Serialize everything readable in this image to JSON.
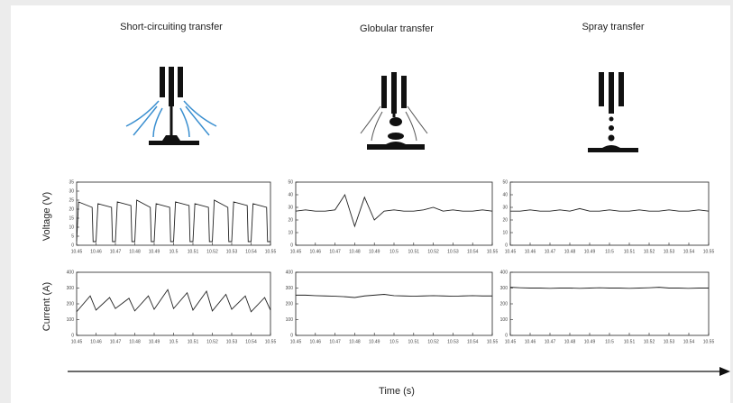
{
  "figure": {
    "column_titles": [
      "Short-circuiting transfer",
      "Globular transfer",
      "Spray transfer"
    ],
    "row_labels": [
      "Voltage (V)",
      "Current (A)"
    ],
    "x_label": "Time (s)"
  },
  "chart_data": [
    {
      "type": "line",
      "color": "#222222",
      "x": [
        10.45,
        10.451,
        10.458,
        10.4585,
        10.46,
        10.461,
        10.468,
        10.4685,
        10.47,
        10.471,
        10.478,
        10.4785,
        10.48,
        10.481,
        10.488,
        10.4885,
        10.49,
        10.491,
        10.498,
        10.4985,
        10.5,
        10.501,
        10.508,
        10.5085,
        10.51,
        10.511,
        10.518,
        10.5185,
        10.52,
        10.521,
        10.528,
        10.5285,
        10.53,
        10.531,
        10.538,
        10.5385,
        10.54,
        10.541,
        10.548,
        10.5485,
        10.55
      ],
      "values": [
        2,
        24,
        21,
        2,
        2,
        23,
        21,
        2,
        2,
        24,
        22,
        2,
        2,
        25,
        21,
        2,
        2,
        23,
        21,
        2,
        2,
        24,
        22,
        2,
        2,
        23,
        21,
        2,
        2,
        25,
        21,
        2,
        2,
        24,
        22,
        2,
        2,
        23,
        21,
        2,
        2
      ],
      "xlim": [
        10.45,
        10.55
      ],
      "xticks": [
        10.45,
        10.46,
        10.47,
        10.48,
        10.49,
        10.5,
        10.51,
        10.52,
        10.53,
        10.54,
        10.55
      ],
      "ylim": [
        0,
        35
      ],
      "yticks": [
        0,
        5,
        10,
        15,
        20,
        25,
        30,
        35
      ]
    },
    {
      "type": "line",
      "color": "#222222",
      "x": [
        10.45,
        10.455,
        10.46,
        10.465,
        10.47,
        10.475,
        10.48,
        10.485,
        10.49,
        10.495,
        10.5,
        10.505,
        10.51,
        10.515,
        10.52,
        10.525,
        10.53,
        10.535,
        10.54,
        10.545,
        10.55
      ],
      "values": [
        27,
        28,
        27,
        27,
        28,
        40,
        15,
        38,
        20,
        27,
        28,
        27,
        27,
        28,
        30,
        27,
        28,
        27,
        27,
        28,
        27
      ],
      "xlim": [
        10.45,
        10.55
      ],
      "xticks": [
        10.45,
        10.46,
        10.47,
        10.48,
        10.49,
        10.5,
        10.51,
        10.52,
        10.53,
        10.54,
        10.55
      ],
      "ylim": [
        0,
        50
      ],
      "yticks": [
        0,
        10,
        20,
        30,
        40,
        50
      ]
    },
    {
      "type": "line",
      "color": "#222222",
      "x": [
        10.45,
        10.455,
        10.46,
        10.465,
        10.47,
        10.475,
        10.48,
        10.485,
        10.49,
        10.495,
        10.5,
        10.505,
        10.51,
        10.515,
        10.52,
        10.525,
        10.53,
        10.535,
        10.54,
        10.545,
        10.55
      ],
      "values": [
        27,
        27,
        28,
        27,
        27,
        28,
        27,
        29,
        27,
        27,
        28,
        27,
        27,
        28,
        27,
        27,
        28,
        27,
        27,
        28,
        27
      ],
      "xlim": [
        10.45,
        10.55
      ],
      "xticks": [
        10.45,
        10.46,
        10.47,
        10.48,
        10.49,
        10.5,
        10.51,
        10.52,
        10.53,
        10.54,
        10.55
      ],
      "ylim": [
        0,
        50
      ],
      "yticks": [
        0,
        10,
        20,
        30,
        40,
        50
      ]
    },
    {
      "type": "line",
      "color": "#222222",
      "x": [
        10.45,
        10.457,
        10.46,
        10.467,
        10.47,
        10.477,
        10.48,
        10.487,
        10.49,
        10.497,
        10.5,
        10.507,
        10.51,
        10.517,
        10.52,
        10.527,
        10.53,
        10.537,
        10.54,
        10.547,
        10.55
      ],
      "values": [
        150,
        250,
        160,
        240,
        170,
        235,
        155,
        250,
        165,
        290,
        170,
        270,
        160,
        280,
        155,
        260,
        165,
        250,
        150,
        240,
        160
      ],
      "xlim": [
        10.45,
        10.55
      ],
      "xticks": [
        10.45,
        10.46,
        10.47,
        10.48,
        10.49,
        10.5,
        10.51,
        10.52,
        10.53,
        10.54,
        10.55
      ],
      "ylim": [
        0,
        400
      ],
      "yticks": [
        0,
        100,
        200,
        300,
        400
      ]
    },
    {
      "type": "line",
      "color": "#222222",
      "x": [
        10.45,
        10.455,
        10.46,
        10.465,
        10.47,
        10.475,
        10.48,
        10.485,
        10.49,
        10.495,
        10.5,
        10.505,
        10.51,
        10.515,
        10.52,
        10.525,
        10.53,
        10.535,
        10.54,
        10.545,
        10.55
      ],
      "values": [
        255,
        255,
        252,
        250,
        248,
        245,
        240,
        250,
        255,
        260,
        252,
        250,
        248,
        250,
        252,
        250,
        248,
        250,
        252,
        250,
        250
      ],
      "xlim": [
        10.45,
        10.55
      ],
      "xticks": [
        10.45,
        10.46,
        10.47,
        10.48,
        10.49,
        10.5,
        10.51,
        10.52,
        10.53,
        10.54,
        10.55
      ],
      "ylim": [
        0,
        400
      ],
      "yticks": [
        0,
        100,
        200,
        300,
        400
      ]
    },
    {
      "type": "line",
      "color": "#222222",
      "x": [
        10.45,
        10.455,
        10.46,
        10.465,
        10.47,
        10.475,
        10.48,
        10.485,
        10.49,
        10.495,
        10.5,
        10.505,
        10.51,
        10.515,
        10.52,
        10.525,
        10.53,
        10.535,
        10.54,
        10.545,
        10.55
      ],
      "values": [
        305,
        302,
        300,
        300,
        298,
        300,
        300,
        298,
        300,
        302,
        300,
        300,
        298,
        300,
        302,
        305,
        300,
        300,
        298,
        300,
        300
      ],
      "xlim": [
        10.45,
        10.55
      ],
      "xticks": [
        10.45,
        10.46,
        10.47,
        10.48,
        10.49,
        10.5,
        10.51,
        10.52,
        10.53,
        10.54,
        10.55
      ],
      "ylim": [
        0,
        400
      ],
      "yticks": [
        0,
        100,
        200,
        300,
        400
      ]
    }
  ]
}
